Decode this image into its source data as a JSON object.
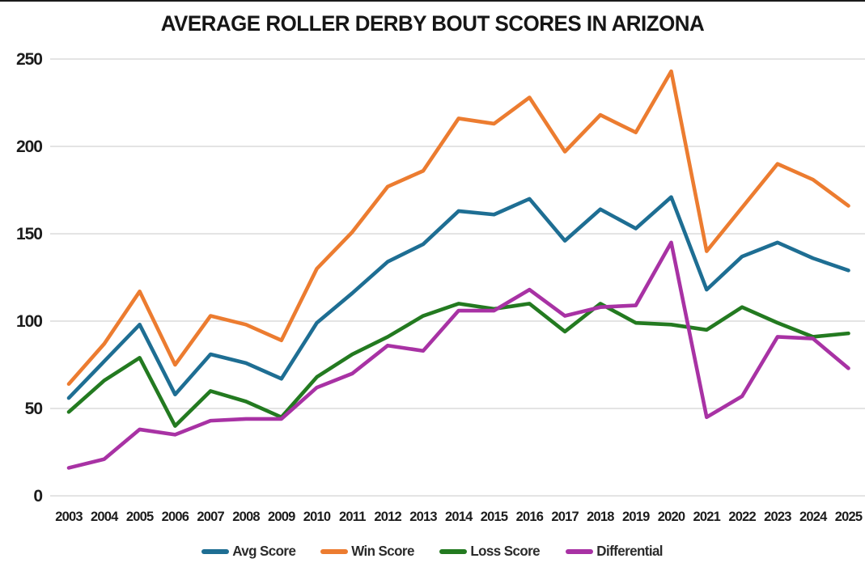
{
  "page": {
    "background": "#ffffff",
    "top_rule_color": "#1a1a1a"
  },
  "chart_data": {
    "type": "line",
    "title": "AVERAGE ROLLER DERBY BOUT SCORES IN ARIZONA",
    "xlabel": "",
    "ylabel": "",
    "x": [
      2003,
      2004,
      2005,
      2006,
      2007,
      2008,
      2009,
      2010,
      2011,
      2012,
      2013,
      2014,
      2015,
      2016,
      2017,
      2018,
      2019,
      2020,
      2021,
      2022,
      2023,
      2024,
      2025
    ],
    "series": [
      {
        "name": "Avg Score",
        "color": "#1E6E93",
        "values": [
          56,
          77,
          98,
          58,
          81,
          76,
          67,
          99,
          116,
          134,
          144,
          163,
          161,
          170,
          146,
          164,
          153,
          171,
          118,
          137,
          145,
          136,
          129
        ]
      },
      {
        "name": "Win Score",
        "color": "#EC7C30",
        "values": [
          64,
          87,
          117,
          75,
          103,
          98,
          89,
          130,
          151,
          177,
          186,
          216,
          213,
          228,
          197,
          218,
          208,
          243,
          140,
          165,
          190,
          181,
          166
        ]
      },
      {
        "name": "Loss Score",
        "color": "#237A20",
        "values": [
          48,
          66,
          79,
          40,
          60,
          54,
          45,
          68,
          81,
          91,
          103,
          110,
          107,
          110,
          94,
          110,
          99,
          98,
          95,
          108,
          99,
          91,
          93
        ]
      },
      {
        "name": "Differential",
        "color": "#A832A4",
        "values": [
          16,
          21,
          38,
          35,
          43,
          44,
          44,
          62,
          70,
          86,
          83,
          106,
          106,
          118,
          103,
          108,
          109,
          145,
          45,
          57,
          91,
          90,
          73
        ]
      }
    ],
    "ylim": [
      0,
      250
    ],
    "y_ticks": [
      0,
      50,
      100,
      150,
      200,
      250
    ],
    "grid": "horizontal",
    "gridline_color": "#dcdcdc",
    "legend_position": "bottom",
    "line_width": 4.6
  }
}
